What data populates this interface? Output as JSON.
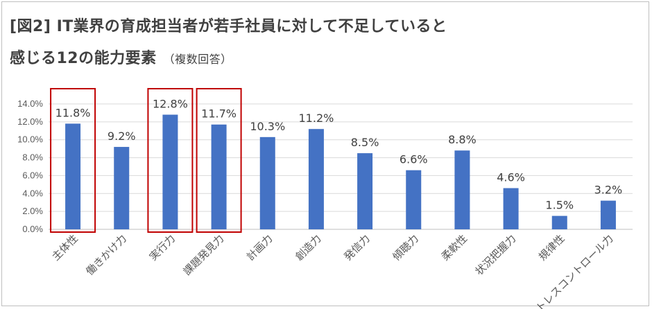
{
  "title": {
    "line1": "[図2] IT業界の育成担当者が若手社員に対して不足していると",
    "line2": "感じる12の能力要素",
    "subtitle": "（複数回答）"
  },
  "colors": {
    "bar": "#4472c4",
    "highlight": "#c00000",
    "grid": "#d9d9d9"
  },
  "chart_data": {
    "type": "bar",
    "categories": [
      "主体性",
      "働きかけ力",
      "実行力",
      "課題発見力",
      "計画力",
      "創造力",
      "発信力",
      "傾聴力",
      "柔軟性",
      "状況把握力",
      "規律性",
      "ストレスコントロール力"
    ],
    "values": [
      11.8,
      9.2,
      12.8,
      11.7,
      10.3,
      11.2,
      8.5,
      6.6,
      8.8,
      4.6,
      1.5,
      3.2
    ],
    "data_labels": [
      "11.8%",
      "9.2%",
      "12.8%",
      "11.7%",
      "10.3%",
      "11.2%",
      "8.5%",
      "6.6%",
      "8.8%",
      "4.6%",
      "1.5%",
      "3.2%"
    ],
    "yticks": [
      "0.0%",
      "2.0%",
      "4.0%",
      "6.0%",
      "8.0%",
      "10.0%",
      "12.0%",
      "14.0%"
    ],
    "ylim": [
      0,
      14
    ],
    "highlighted": [
      "主体性",
      "実行力",
      "課題発見力"
    ],
    "grid": true,
    "legend": "none"
  }
}
